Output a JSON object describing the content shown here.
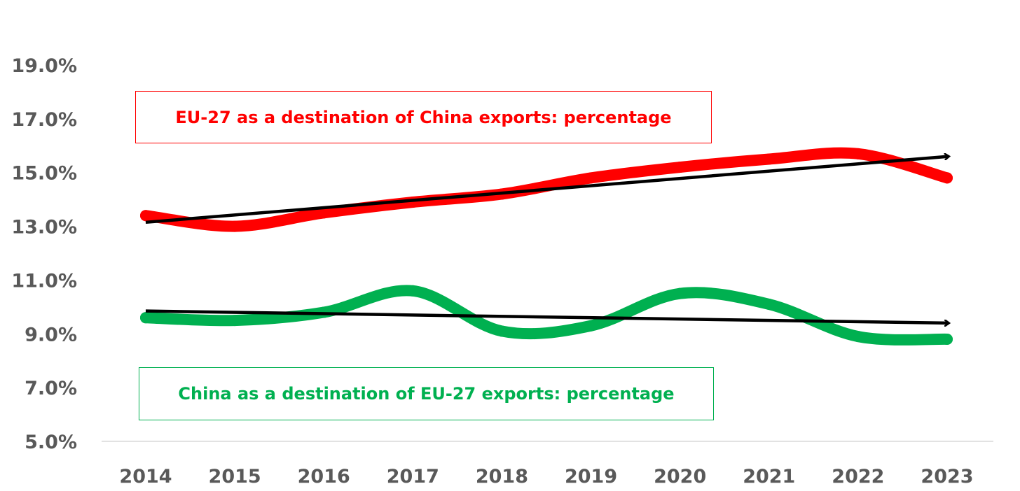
{
  "chart_data": {
    "type": "line",
    "categories": [
      "2014",
      "2015",
      "2016",
      "2017",
      "2018",
      "2019",
      "2020",
      "2021",
      "2022",
      "2023"
    ],
    "y_ticks": [
      "5.0%",
      "7.0%",
      "9.0%",
      "11.0%",
      "13.0%",
      "15.0%",
      "17.0%",
      "19.0%"
    ],
    "ylim": [
      5.0,
      19.0
    ],
    "grid": false,
    "series": [
      {
        "name": "EU-27 as a destination of China exports: percentage",
        "color": "#ff0000",
        "values": [
          13.4,
          13.0,
          13.5,
          13.9,
          14.2,
          14.8,
          15.2,
          15.5,
          15.7,
          14.8
        ],
        "trend": [
          13.15,
          15.6
        ]
      },
      {
        "name": "China as a destination of EU-27 exports: percentage",
        "color": "#00b050",
        "values": [
          9.6,
          9.5,
          9.8,
          10.6,
          9.1,
          9.3,
          10.5,
          10.1,
          8.9,
          8.8
        ],
        "trend": [
          9.85,
          9.4
        ]
      }
    ],
    "trend_color": "#000000"
  }
}
